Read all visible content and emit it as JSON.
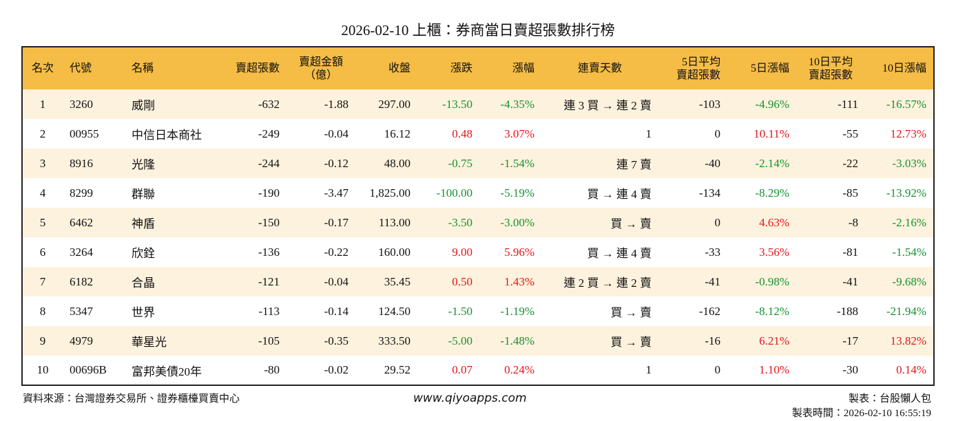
{
  "header": {
    "title": "2026-02-10 上櫃：券商當日賣超張數排行榜"
  },
  "table": {
    "columns": [
      "名次",
      "代號",
      "名稱",
      "賣超張數",
      "賣超金額\n（億）",
      "收盤",
      "漲跌",
      "漲幅",
      "連賣天數",
      "5日平均\n賣超張數",
      "5日漲幅",
      "10日平均\n賣超張數",
      "10日漲幅"
    ],
    "rows": [
      [
        "1",
        "3260",
        "威剛",
        "-632",
        "-1.88",
        "297.00",
        "-13.50",
        "-4.35%",
        "連 3 買 → 連 2 賣",
        "-103",
        "-4.96%",
        "-111",
        "-16.57%"
      ],
      [
        "2",
        "00955",
        "中信日本商社",
        "-249",
        "-0.04",
        "16.12",
        "0.48",
        "3.07%",
        "1",
        "0",
        "10.11%",
        "-55",
        "12.73%"
      ],
      [
        "3",
        "8916",
        "光隆",
        "-244",
        "-0.12",
        "48.00",
        "-0.75",
        "-1.54%",
        "連 7 賣",
        "-40",
        "-2.14%",
        "-22",
        "-3.03%"
      ],
      [
        "4",
        "8299",
        "群聯",
        "-190",
        "-3.47",
        "1,825.00",
        "-100.00",
        "-5.19%",
        "買 → 連 4 賣",
        "-134",
        "-8.29%",
        "-85",
        "-13.92%"
      ],
      [
        "5",
        "6462",
        "神盾",
        "-150",
        "-0.17",
        "113.00",
        "-3.50",
        "-3.00%",
        "買 → 賣",
        "0",
        "4.63%",
        "-8",
        "-2.16%"
      ],
      [
        "6",
        "3264",
        "欣銓",
        "-136",
        "-0.22",
        "160.00",
        "9.00",
        "5.96%",
        "買 → 連 4 賣",
        "-33",
        "3.56%",
        "-81",
        "-1.54%"
      ],
      [
        "7",
        "6182",
        "合晶",
        "-121",
        "-0.04",
        "35.45",
        "0.50",
        "1.43%",
        "連 2 買 → 連 2 賣",
        "-41",
        "-0.98%",
        "-41",
        "-9.68%"
      ],
      [
        "8",
        "5347",
        "世界",
        "-113",
        "-0.14",
        "124.50",
        "-1.50",
        "-1.19%",
        "買 → 賣",
        "-162",
        "-8.12%",
        "-188",
        "-21.94%"
      ],
      [
        "9",
        "4979",
        "華星光",
        "-105",
        "-0.35",
        "333.50",
        "-5.00",
        "-1.48%",
        "買 → 賣",
        "-16",
        "6.21%",
        "-17",
        "13.82%"
      ],
      [
        "10",
        "00696B",
        "富邦美債20年",
        "-80",
        "-0.02",
        "29.52",
        "0.07",
        "0.24%",
        "1",
        "0",
        "1.10%",
        "-30",
        "0.14%"
      ]
    ]
  },
  "footer": {
    "source": "資料來源：台灣證券交易所、證券櫃檯買賣中心",
    "site": "www.qiyoapps.com",
    "author": "製表：台股懶人包",
    "time": "製表時間：2026-02-10 16:55:19"
  }
}
